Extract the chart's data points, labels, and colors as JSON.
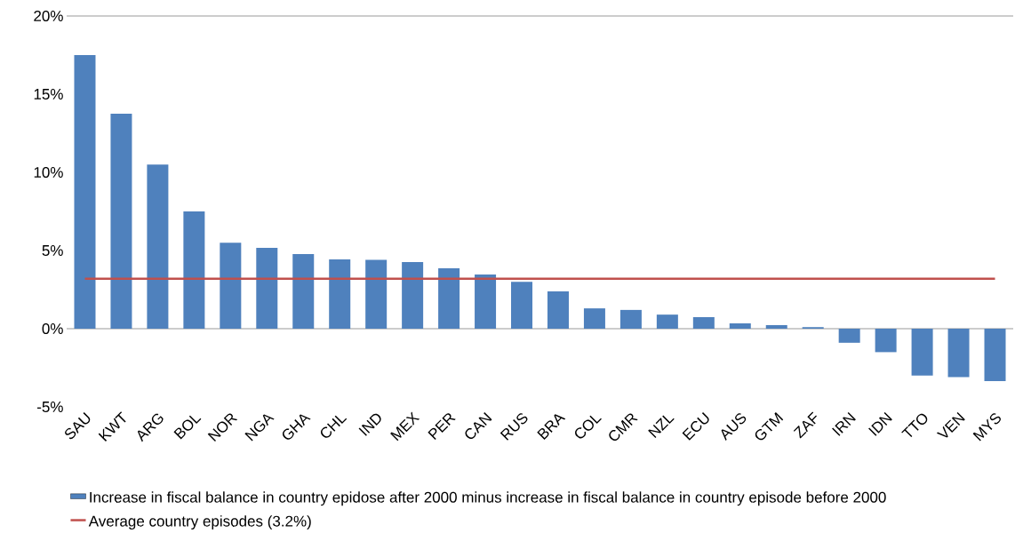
{
  "chart_data": {
    "type": "bar",
    "categories": [
      "SAU",
      "KWT",
      "ARG",
      "BOL",
      "NOR",
      "NGA",
      "GHA",
      "CHL",
      "IND",
      "MEX",
      "PER",
      "CAN",
      "RUS",
      "BRA",
      "COL",
      "CMR",
      "NZL",
      "ECU",
      "AUS",
      "GTM",
      "ZAF",
      "IRN",
      "IDN",
      "TTO",
      "VEN",
      "MYS"
    ],
    "series": [
      {
        "name": "Increase in fiscal balance in country epidose after 2000 minus increase in fiscal balance in country episode before 2000",
        "color": "#4f81bd",
        "values": [
          17.5,
          13.75,
          10.5,
          7.5,
          5.5,
          5.17,
          4.77,
          4.43,
          4.4,
          4.26,
          3.86,
          3.47,
          3.0,
          2.39,
          1.3,
          1.2,
          0.9,
          0.74,
          0.34,
          0.23,
          0.1,
          -0.9,
          -1.5,
          -3.0,
          -3.1,
          -3.35
        ]
      },
      {
        "name": "Average country episodes (3.2%)",
        "type": "line",
        "color": "#c0504d",
        "values": [
          3.2,
          3.2,
          3.2,
          3.2,
          3.2,
          3.2,
          3.2,
          3.2,
          3.2,
          3.2,
          3.2,
          3.2,
          3.2,
          3.2,
          3.2,
          3.2,
          3.2,
          3.2,
          3.2,
          3.2,
          3.2,
          3.2,
          3.2,
          3.2,
          3.2,
          3.2
        ]
      }
    ],
    "ylim": [
      -5,
      20
    ],
    "yticks": [
      {
        "value": -5,
        "label": "-5%"
      },
      {
        "value": 0,
        "label": "0%"
      },
      {
        "value": 5,
        "label": "5%"
      },
      {
        "value": 10,
        "label": "10%"
      },
      {
        "value": 15,
        "label": "15%"
      },
      {
        "value": 20,
        "label": "20%"
      }
    ],
    "legend": "bottom"
  }
}
